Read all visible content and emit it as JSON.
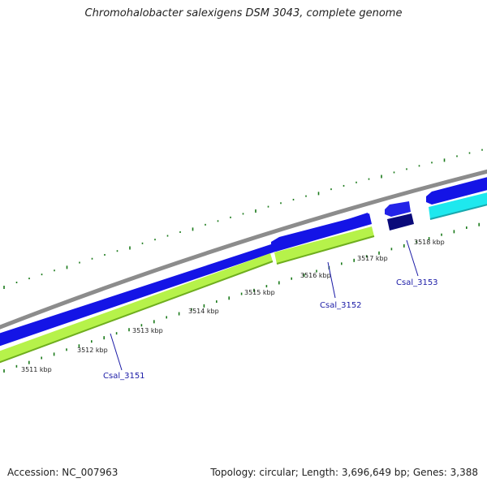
{
  "title": "Chromohalobacter salexigens DSM 3043, complete genome",
  "kbp_labels": [
    "3511 kbp",
    "3512 kbp",
    "3513 kbp",
    "3514 kbp",
    "3515 kbp",
    "3516 kbp",
    "3517 kbp",
    "3518 kbp"
  ],
  "gene_labels": [
    "Csal_3151",
    "Csal_3152",
    "Csal_3153"
  ],
  "footer": {
    "accession": "Accession: NC_007963",
    "summary": "Topology: circular; Length: 3,696,649 bp; Genes: 3,388"
  },
  "colors": {
    "backbone": "#8c8c8c",
    "forward_cds": "#1414e6",
    "forward_cds_small": "#2323e8",
    "reverse_cds": "#0a0a7a",
    "reverse_cds_light": "#1ee8ee",
    "yellow_green": "#b6f24a",
    "yellow_green_edge": "#6fae1e",
    "tick": "#1a7a1a",
    "label_blue": "#1a1aa6"
  }
}
